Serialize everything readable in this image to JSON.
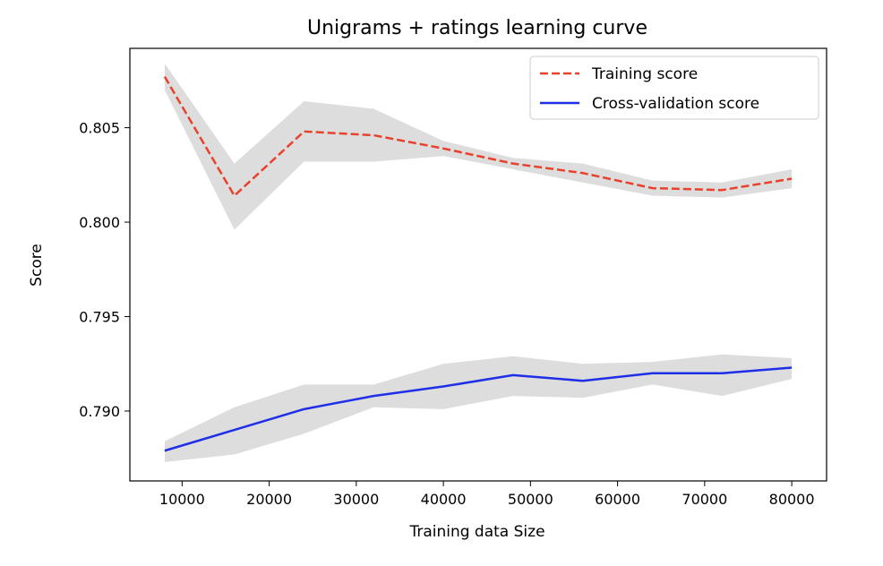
{
  "chart_data": {
    "type": "line",
    "title": "Unigrams + ratings learning curve",
    "xlabel": "Training data Size",
    "ylabel": "Score",
    "xlim": [
      4000,
      84000
    ],
    "ylim": [
      0.7863,
      0.8092
    ],
    "xticks": [
      10000,
      20000,
      30000,
      40000,
      50000,
      60000,
      70000,
      80000
    ],
    "xtick_labels": [
      "10000",
      "20000",
      "30000",
      "40000",
      "50000",
      "60000",
      "70000",
      "80000"
    ],
    "yticks": [
      0.79,
      0.795,
      0.8,
      0.805
    ],
    "ytick_labels": [
      "0.790",
      "0.795",
      "0.800",
      "0.805"
    ],
    "grid": false,
    "legend_position": "top-right",
    "x": [
      8000,
      16000,
      24000,
      32000,
      40000,
      48000,
      56000,
      64000,
      72000,
      80000
    ],
    "series": [
      {
        "name": "Training score",
        "style": "dashed",
        "color": "#e8412c",
        "values": [
          0.8077,
          0.8014,
          0.8048,
          0.8046,
          0.8039,
          0.8031,
          0.8026,
          0.8018,
          0.8017,
          0.8023
        ],
        "band_upper": [
          0.8084,
          0.8031,
          0.8064,
          0.806,
          0.8043,
          0.8034,
          0.8031,
          0.8022,
          0.8021,
          0.8028
        ],
        "band_lower": [
          0.807,
          0.7996,
          0.8032,
          0.8032,
          0.8035,
          0.8028,
          0.8021,
          0.8014,
          0.8013,
          0.8018
        ]
      },
      {
        "name": "Cross-validation score",
        "style": "solid",
        "color": "#1f2fe8",
        "values": [
          0.7879,
          0.789,
          0.7901,
          0.7908,
          0.7913,
          0.7919,
          0.7916,
          0.792,
          0.792,
          0.7923
        ],
        "band_upper": [
          0.7884,
          0.7902,
          0.7914,
          0.7914,
          0.7925,
          0.7929,
          0.7925,
          0.7926,
          0.793,
          0.7928
        ],
        "band_lower": [
          0.7873,
          0.7877,
          0.7888,
          0.7902,
          0.7901,
          0.7908,
          0.7907,
          0.7914,
          0.7908,
          0.7917
        ]
      }
    ],
    "band_color": "#dddddd"
  }
}
